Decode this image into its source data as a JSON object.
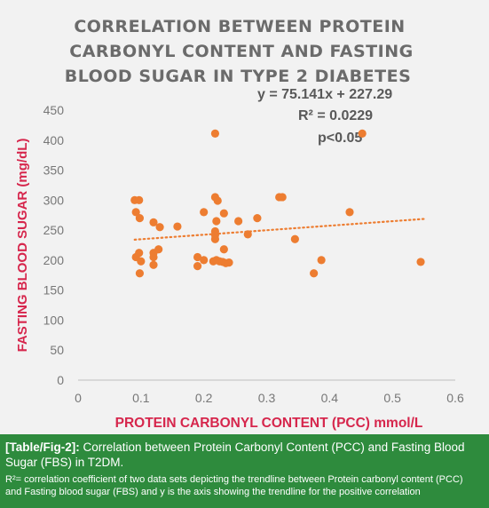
{
  "chart_data": {
    "type": "scatter",
    "title_lines": [
      "CORRELATION BETWEEN PROTEIN",
      "CARBONYL CONTENT AND FASTING",
      "BLOOD SUGAR IN TYPE 2 DIABETES"
    ],
    "xlabel": "PROTEIN CARBONYL CONTENT (PCC) mmol/L",
    "ylabel": "FASTING BLOOD SUGAR (mg/dL)",
    "xlim": [
      0,
      0.6
    ],
    "ylim": [
      0,
      450
    ],
    "x_ticks": [
      "0",
      "0.1",
      "0.2",
      "0.3",
      "0.4",
      "0.5",
      "0.6"
    ],
    "y_ticks": [
      "0",
      "50",
      "100",
      "150",
      "200",
      "250",
      "300",
      "350",
      "400",
      "450"
    ],
    "grid": false,
    "marker_color": "#ed7d31",
    "trendline": {
      "slope": 75.141,
      "intercept": 227.29,
      "x_range": [
        0.09,
        0.55
      ],
      "style": "dotted"
    },
    "annotations": {
      "equation": "y = 75.141x + 227.29",
      "r_squared": "R² = 0.0229",
      "p_value": "p<0.05"
    },
    "points": [
      [
        0.09,
        300
      ],
      [
        0.097,
        300
      ],
      [
        0.092,
        280
      ],
      [
        0.098,
        270
      ],
      [
        0.092,
        205
      ],
      [
        0.097,
        212
      ],
      [
        0.1,
        198
      ],
      [
        0.098,
        178
      ],
      [
        0.12,
        263
      ],
      [
        0.13,
        255
      ],
      [
        0.158,
        256
      ],
      [
        0.12,
        212
      ],
      [
        0.12,
        205
      ],
      [
        0.128,
        218
      ],
      [
        0.12,
        192
      ],
      [
        0.19,
        205
      ],
      [
        0.19,
        190
      ],
      [
        0.2,
        280
      ],
      [
        0.2,
        200
      ],
      [
        0.215,
        198
      ],
      [
        0.22,
        200
      ],
      [
        0.225,
        198
      ],
      [
        0.23,
        197
      ],
      [
        0.235,
        195
      ],
      [
        0.24,
        196
      ],
      [
        0.218,
        411
      ],
      [
        0.218,
        305
      ],
      [
        0.222,
        299
      ],
      [
        0.232,
        278
      ],
      [
        0.22,
        265
      ],
      [
        0.255,
        265
      ],
      [
        0.218,
        248
      ],
      [
        0.218,
        242
      ],
      [
        0.218,
        235
      ],
      [
        0.232,
        218
      ],
      [
        0.27,
        243
      ],
      [
        0.285,
        270
      ],
      [
        0.32,
        305
      ],
      [
        0.325,
        305
      ],
      [
        0.345,
        235
      ],
      [
        0.375,
        178
      ],
      [
        0.387,
        200
      ],
      [
        0.432,
        280
      ],
      [
        0.452,
        411
      ],
      [
        0.545,
        197
      ]
    ]
  },
  "caption": {
    "ref": "[Table/Fig-2]:",
    "text": " Correlation between Protein Carbonyl Content (PCC) and Fasting Blood Sugar (FBS) in T2DM.",
    "note": "R²= correlation coefficient of two data sets depicting the trendline between Protein carbonyl content (PCC) and Fasting blood sugar (FBS) and y is the axis showing the trendline for the positive correlation"
  }
}
